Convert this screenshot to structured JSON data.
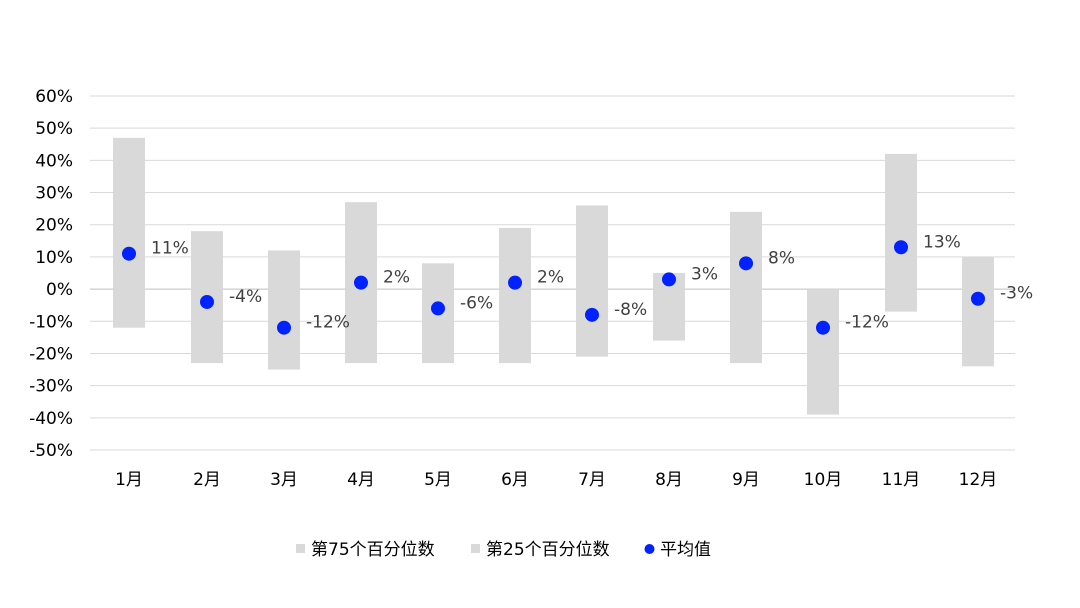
{
  "chart_data": {
    "type": "box-range-scatter",
    "title": "",
    "xlabel": "",
    "ylabel": "",
    "ylim": [
      -50,
      60
    ],
    "ytick_step": 10,
    "y_tick_labels": [
      "60%",
      "50%",
      "40%",
      "30%",
      "20%",
      "10%",
      "0%",
      "-10%",
      "-20%",
      "-30%",
      "-40%",
      "-50%"
    ],
    "grid": "horizontal",
    "legend_position": "bottom",
    "categories": [
      "1月",
      "2月",
      "3月",
      "4月",
      "5月",
      "6月",
      "7月",
      "8月",
      "9月",
      "10月",
      "11月",
      "12月"
    ],
    "series": [
      {
        "name": "第75个百分位数",
        "values": [
          47,
          18,
          12,
          27,
          8,
          19,
          26,
          5,
          24,
          0,
          42,
          10
        ],
        "color": "#d9d9d9"
      },
      {
        "name": "第25个百分位数",
        "values": [
          -12,
          -23,
          -25,
          -23,
          -23,
          -23,
          -21,
          -16,
          -23,
          -39,
          -7,
          -24
        ],
        "color": "#d9d9d9"
      },
      {
        "name": "平均值",
        "values": [
          11,
          -4,
          -12,
          2,
          -6,
          2,
          -8,
          3,
          8,
          -12,
          13,
          -3
        ],
        "color": "#0022ff"
      }
    ],
    "data_labels": [
      "11%",
      "-4%",
      "-12%",
      "2%",
      "-6%",
      "2%",
      "-8%",
      "3%",
      "8%",
      "-12%",
      "13%",
      "-3%"
    ],
    "colors": {
      "range_bar": "#d9d9d9",
      "mean_dot": "#0022ff",
      "gridline": "#d9d9d9",
      "axis": "#bfbfbf"
    }
  }
}
